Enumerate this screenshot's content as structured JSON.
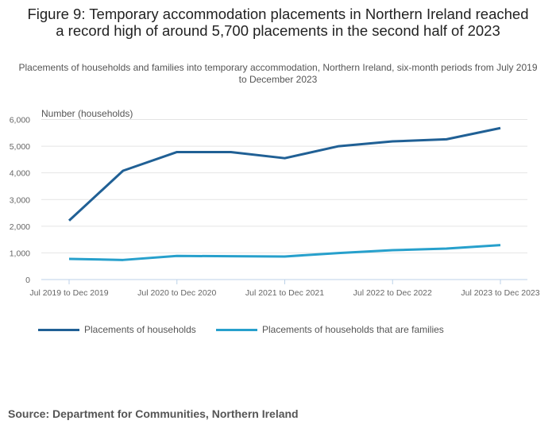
{
  "chart_data": {
    "type": "line",
    "title": "Figure 9: Temporary accommodation placements in Northern Ireland reached a record high of around 5,700 placements in the second half of 2023",
    "subtitle": "Placements of households and families into temporary accommodation, Northern Ireland, six-month periods from July 2019 to December 2023",
    "ylabel": "Number (households)",
    "xlabel": "",
    "ylim": [
      0,
      6000
    ],
    "yticks": [
      0,
      1000,
      2000,
      3000,
      4000,
      5000,
      6000
    ],
    "ytick_labels": [
      "0",
      "1,000",
      "2,000",
      "3,000",
      "4,000",
      "5,000",
      "6,000"
    ],
    "categories": [
      "Jul 2019 to Dec 2019",
      "",
      "Jul 2020 to Dec 2020",
      "",
      "Jul 2021 to Dec 2021",
      "",
      "Jul 2022 to Dec 2022",
      "",
      "Jul 2023 to Dec 2023"
    ],
    "grid": true,
    "legend_position": "bottom-left",
    "series": [
      {
        "name": "Placements of households",
        "color": "#206095",
        "values": [
          2210,
          4080,
          4780,
          4780,
          4550,
          5000,
          5180,
          5260,
          5680
        ]
      },
      {
        "name": "Placements of households that are families",
        "color": "#27a0cc",
        "values": [
          775,
          735,
          885,
          875,
          865,
          995,
          1100,
          1160,
          1290
        ]
      }
    ]
  },
  "source": "Source: Department for Communities, Northern Ireland"
}
